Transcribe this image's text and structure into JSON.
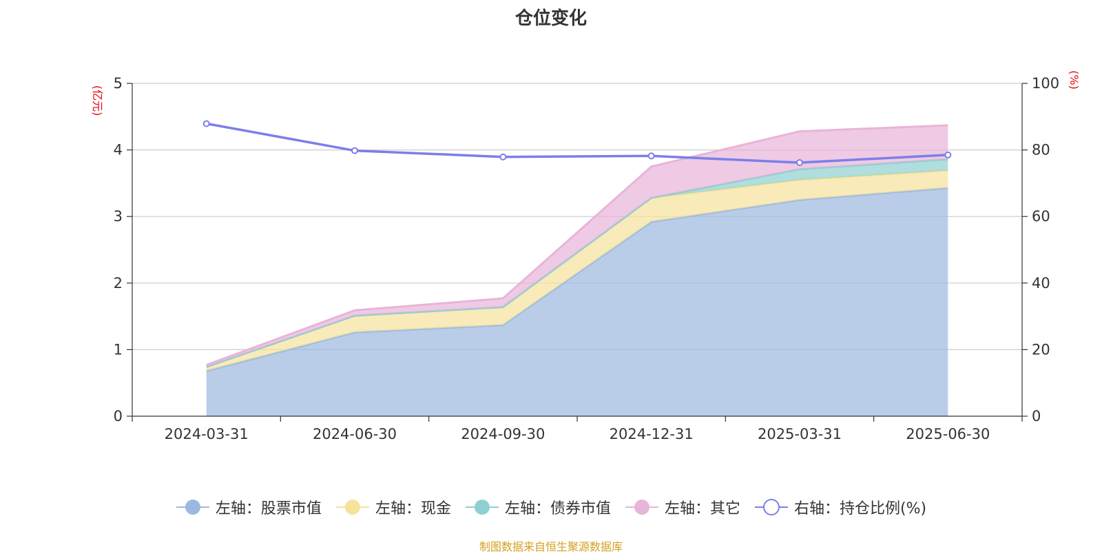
{
  "title": "仓位变化",
  "source_note": "制图数据来自恒生聚源数据库",
  "chart_data": {
    "type": "area",
    "categories": [
      "2024-03-31",
      "2024-06-30",
      "2024-09-30",
      "2024-12-31",
      "2025-03-31",
      "2025-06-30"
    ],
    "left_axis": {
      "unit": "(亿元)",
      "ylim": [
        0,
        5
      ],
      "ticks": [
        "0",
        "1",
        "2",
        "3",
        "4",
        "5"
      ]
    },
    "right_axis": {
      "unit": "(%)",
      "ylim": [
        0,
        100
      ],
      "ticks": [
        "0",
        "20",
        "40",
        "60",
        "80",
        "100"
      ]
    },
    "grid": true,
    "legend_position": "bottom",
    "series": [
      {
        "name": "左轴：股票市值",
        "axis": "left",
        "color": "#9bb8e0",
        "values": [
          0.68,
          1.26,
          1.37,
          2.92,
          3.25,
          3.43
        ]
      },
      {
        "name": "左轴：现金",
        "axis": "left",
        "color": "#f5e39b",
        "values": [
          0.06,
          0.25,
          0.27,
          0.36,
          0.3,
          0.26
        ]
      },
      {
        "name": "左轴：债券市值",
        "axis": "left",
        "color": "#8ed0d0",
        "values": [
          0,
          0,
          0,
          0,
          0.16,
          0.17
        ]
      },
      {
        "name": "左轴：其它",
        "axis": "left",
        "color": "#e8b4d8",
        "values": [
          0.03,
          0.08,
          0.13,
          0.47,
          0.57,
          0.51
        ]
      },
      {
        "name": "右轴：持仓比例(%)",
        "axis": "right",
        "color": "#7b7fe8",
        "values": [
          87.9,
          79.8,
          77.9,
          78.2,
          76.2,
          78.5
        ]
      }
    ]
  }
}
